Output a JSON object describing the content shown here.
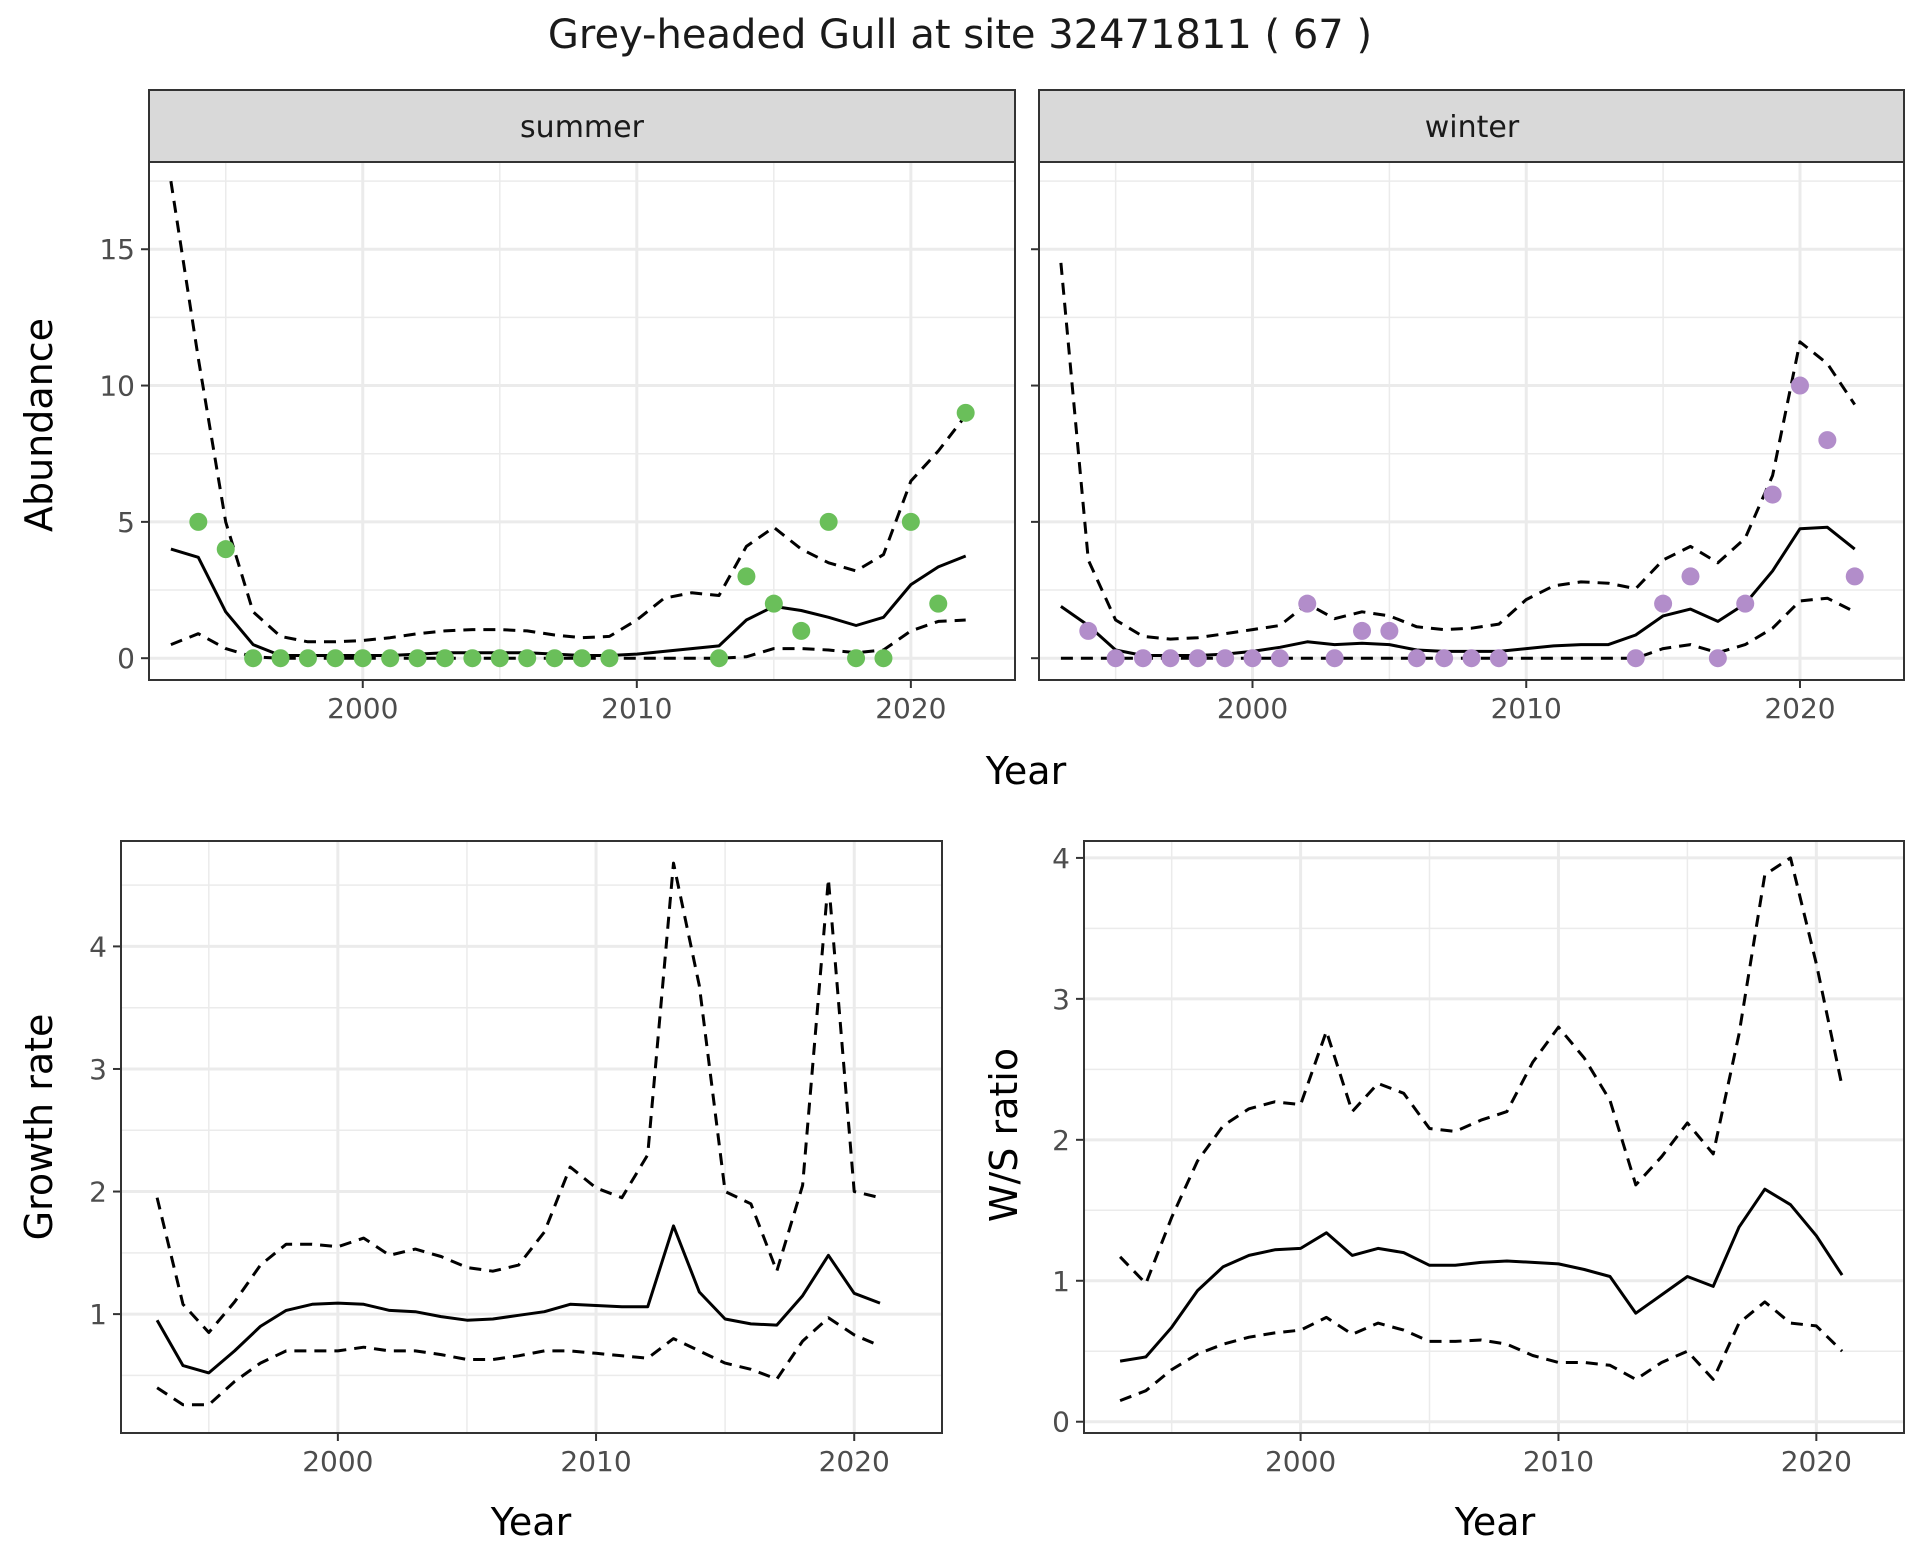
{
  "title": "Grey-headed Gull at site 32471811 ( 67 )",
  "colors": {
    "summer_points": "#6abf5a",
    "winter_points": "#b28dca",
    "strip_fill": "#d9d9d9",
    "grid": "#ebebeb"
  },
  "chart_data": [
    {
      "type": "line",
      "panel": "summer",
      "facet_label": "summer",
      "xlabel": "Year",
      "ylabel": "Abundance",
      "xlim": [
        1992.2,
        2023.8
      ],
      "ylim": [
        -0.8,
        18.2
      ],
      "xticks": [
        2000,
        2010,
        2020
      ],
      "yticks": [
        0,
        5,
        10,
        15
      ],
      "points": {
        "x": [
          1994,
          1995,
          1996,
          1997,
          1998,
          1999,
          2000,
          2001,
          2002,
          2003,
          2004,
          2005,
          2006,
          2007,
          2008,
          2009,
          2013,
          2014,
          2015,
          2016,
          2017,
          2018,
          2019,
          2020,
          2021,
          2022
        ],
        "y": [
          5,
          4,
          0,
          0,
          0,
          0,
          0,
          0,
          0,
          0,
          0,
          0,
          0,
          0,
          0,
          0,
          0,
          3,
          2,
          1,
          5,
          0,
          0,
          5,
          2,
          9
        ]
      },
      "series": [
        {
          "style": "solid",
          "x": [
            1993,
            1994,
            1995,
            1996,
            1997,
            1998,
            1999,
            2000,
            2001,
            2002,
            2003,
            2004,
            2005,
            2006,
            2007,
            2008,
            2009,
            2010,
            2011,
            2012,
            2013,
            2014,
            2015,
            2016,
            2017,
            2018,
            2019,
            2020,
            2021,
            2022
          ],
          "values": [
            4.0,
            3.7,
            1.7,
            0.5,
            0.1,
            0.1,
            0.1,
            0.1,
            0.1,
            0.15,
            0.2,
            0.2,
            0.2,
            0.2,
            0.15,
            0.1,
            0.1,
            0.15,
            0.25,
            0.35,
            0.45,
            1.4,
            1.9,
            1.75,
            1.5,
            1.2,
            1.5,
            2.7,
            3.35,
            3.75
          ]
        },
        {
          "style": "dashed",
          "x": [
            1993,
            1994,
            1995,
            1996,
            1997,
            1998,
            1999,
            2000,
            2001,
            2002,
            2003,
            2004,
            2005,
            2006,
            2007,
            2008,
            2009,
            2010,
            2011,
            2012,
            2013,
            2014,
            2015,
            2016,
            2017,
            2018,
            2019,
            2020,
            2021,
            2022
          ],
          "values": [
            17.5,
            11.0,
            5.0,
            1.7,
            0.8,
            0.6,
            0.6,
            0.65,
            0.75,
            0.9,
            1.0,
            1.05,
            1.05,
            1.0,
            0.85,
            0.75,
            0.8,
            1.4,
            2.2,
            2.4,
            2.3,
            4.1,
            4.8,
            4.0,
            3.5,
            3.2,
            3.8,
            6.5,
            7.6,
            8.9
          ]
        },
        {
          "style": "dashed",
          "x": [
            1993,
            1994,
            1995,
            1996,
            1997,
            1998,
            1999,
            2000,
            2001,
            2002,
            2003,
            2004,
            2005,
            2006,
            2007,
            2008,
            2009,
            2010,
            2011,
            2012,
            2013,
            2014,
            2015,
            2016,
            2017,
            2018,
            2019,
            2020,
            2021,
            2022
          ],
          "values": [
            0.5,
            0.9,
            0.35,
            0.05,
            0,
            0,
            0,
            0,
            0,
            0,
            0,
            0,
            0,
            0,
            0,
            0,
            0,
            0,
            0,
            0,
            0,
            0.05,
            0.35,
            0.35,
            0.3,
            0.2,
            0.3,
            1.0,
            1.35,
            1.4
          ]
        }
      ]
    },
    {
      "type": "line",
      "panel": "winter",
      "facet_label": "winter",
      "xlabel": "Year",
      "ylabel": "",
      "xlim": [
        1992.2,
        2023.8
      ],
      "ylim": [
        -0.8,
        18.2
      ],
      "xticks": [
        2000,
        2010,
        2020
      ],
      "yticks": [
        0,
        5,
        10,
        15
      ],
      "points": {
        "x": [
          1994,
          1995,
          1996,
          1997,
          1998,
          1999,
          2000,
          2001,
          2002,
          2003,
          2004,
          2005,
          2006,
          2007,
          2008,
          2009,
          2014,
          2015,
          2016,
          2017,
          2018,
          2019,
          2020,
          2021,
          2022
        ],
        "y": [
          1,
          0,
          0,
          0,
          0,
          0,
          0,
          0,
          2,
          0,
          1,
          1,
          0,
          0,
          0,
          0,
          0,
          2,
          3,
          0,
          2,
          6,
          10,
          8,
          3
        ]
      },
      "series": [
        {
          "style": "solid",
          "x": [
            1993,
            1994,
            1995,
            1996,
            1997,
            1998,
            1999,
            2000,
            2001,
            2002,
            2003,
            2004,
            2005,
            2006,
            2007,
            2008,
            2009,
            2010,
            2011,
            2012,
            2013,
            2014,
            2015,
            2016,
            2017,
            2018,
            2019,
            2020,
            2021,
            2022
          ],
          "values": [
            1.9,
            1.2,
            0.3,
            0.1,
            0.1,
            0.1,
            0.15,
            0.25,
            0.4,
            0.6,
            0.5,
            0.55,
            0.5,
            0.3,
            0.25,
            0.25,
            0.25,
            0.35,
            0.45,
            0.5,
            0.5,
            0.85,
            1.55,
            1.8,
            1.35,
            2.0,
            3.2,
            4.75,
            4.8,
            4.0
          ]
        },
        {
          "style": "dashed",
          "x": [
            1993,
            1994,
            1995,
            1996,
            1997,
            1998,
            1999,
            2000,
            2001,
            2002,
            2003,
            2004,
            2005,
            2006,
            2007,
            2008,
            2009,
            2010,
            2011,
            2012,
            2013,
            2014,
            2015,
            2016,
            2017,
            2018,
            2019,
            2020,
            2021,
            2022
          ],
          "values": [
            14.5,
            3.6,
            1.4,
            0.8,
            0.7,
            0.75,
            0.9,
            1.05,
            1.2,
            2.0,
            1.45,
            1.7,
            1.55,
            1.15,
            1.05,
            1.1,
            1.25,
            2.15,
            2.65,
            2.8,
            2.75,
            2.55,
            3.6,
            4.1,
            3.5,
            4.4,
            6.7,
            11.6,
            10.8,
            9.3
          ]
        },
        {
          "style": "dashed",
          "x": [
            1993,
            1994,
            1995,
            1996,
            1997,
            1998,
            1999,
            2000,
            2001,
            2002,
            2003,
            2004,
            2005,
            2006,
            2007,
            2008,
            2009,
            2010,
            2011,
            2012,
            2013,
            2014,
            2015,
            2016,
            2017,
            2018,
            2019,
            2020,
            2021,
            2022
          ],
          "values": [
            0,
            0,
            0,
            0,
            0,
            0,
            0,
            0,
            0,
            0,
            0,
            0,
            0,
            0,
            0,
            0,
            0,
            0,
            0,
            0,
            0,
            0,
            0.35,
            0.5,
            0.2,
            0.5,
            1.1,
            2.1,
            2.2,
            1.7
          ]
        }
      ]
    },
    {
      "type": "line",
      "panel": "growth",
      "xlabel": "Year",
      "ylabel": "Growth rate",
      "xlim": [
        1991.6,
        2023.4
      ],
      "ylim": [
        0.03,
        4.86
      ],
      "xticks": [
        2000,
        2010,
        2020
      ],
      "yticks": [
        1,
        2,
        3,
        4
      ],
      "series": [
        {
          "style": "solid",
          "x": [
            1993,
            1994,
            1995,
            1996,
            1997,
            1998,
            1999,
            2000,
            2001,
            2002,
            2003,
            2004,
            2005,
            2006,
            2007,
            2008,
            2009,
            2010,
            2011,
            2012,
            2013,
            2014,
            2015,
            2016,
            2017,
            2018,
            2019,
            2020,
            2021
          ],
          "values": [
            0.95,
            0.58,
            0.52,
            0.7,
            0.9,
            1.03,
            1.08,
            1.09,
            1.08,
            1.03,
            1.02,
            0.98,
            0.95,
            0.96,
            0.99,
            1.02,
            1.08,
            1.07,
            1.06,
            1.06,
            1.72,
            1.18,
            0.96,
            0.92,
            0.91,
            1.15,
            1.48,
            1.17,
            1.09
          ]
        },
        {
          "style": "dashed",
          "x": [
            1993,
            1994,
            1995,
            1996,
            1997,
            1998,
            1999,
            2000,
            2001,
            2002,
            2003,
            2004,
            2005,
            2006,
            2007,
            2008,
            2009,
            2010,
            2011,
            2012,
            2013,
            2014,
            2015,
            2016,
            2017,
            2018,
            2019,
            2020,
            2021
          ],
          "values": [
            1.95,
            1.08,
            0.85,
            1.1,
            1.4,
            1.57,
            1.57,
            1.55,
            1.62,
            1.48,
            1.53,
            1.47,
            1.38,
            1.35,
            1.4,
            1.67,
            2.2,
            2.03,
            1.95,
            2.3,
            4.68,
            3.68,
            2.0,
            1.9,
            1.35,
            2.05,
            4.55,
            2.0,
            1.95
          ]
        },
        {
          "style": "dashed",
          "x": [
            1993,
            1994,
            1995,
            1996,
            1997,
            1998,
            1999,
            2000,
            2001,
            2002,
            2003,
            2004,
            2005,
            2006,
            2007,
            2008,
            2009,
            2010,
            2011,
            2012,
            2013,
            2014,
            2015,
            2016,
            2017,
            2018,
            2019,
            2020,
            2021
          ],
          "values": [
            0.4,
            0.26,
            0.26,
            0.45,
            0.6,
            0.7,
            0.7,
            0.7,
            0.73,
            0.7,
            0.7,
            0.67,
            0.63,
            0.63,
            0.66,
            0.7,
            0.7,
            0.68,
            0.66,
            0.64,
            0.8,
            0.7,
            0.6,
            0.55,
            0.47,
            0.78,
            0.97,
            0.83,
            0.74
          ]
        }
      ]
    },
    {
      "type": "line",
      "panel": "ws",
      "xlabel": "Year",
      "ylabel": "W/S ratio",
      "xlim": [
        1991.6,
        2023.4
      ],
      "ylim": [
        -0.08,
        4.12
      ],
      "xticks": [
        2000,
        2010,
        2020
      ],
      "yticks": [
        0,
        1,
        2,
        3,
        4
      ],
      "series": [
        {
          "style": "solid",
          "x": [
            1993,
            1994,
            1995,
            1996,
            1997,
            1998,
            1999,
            2000,
            2001,
            2002,
            2003,
            2004,
            2005,
            2006,
            2007,
            2008,
            2009,
            2010,
            2011,
            2012,
            2013,
            2014,
            2015,
            2016,
            2017,
            2018,
            2019,
            2020,
            2021
          ],
          "values": [
            0.43,
            0.46,
            0.67,
            0.93,
            1.1,
            1.18,
            1.22,
            1.23,
            1.34,
            1.18,
            1.23,
            1.2,
            1.11,
            1.11,
            1.13,
            1.14,
            1.13,
            1.12,
            1.08,
            1.03,
            0.77,
            0.9,
            1.03,
            0.96,
            1.38,
            1.65,
            1.54,
            1.32,
            1.04
          ]
        },
        {
          "style": "dashed",
          "x": [
            1993,
            1994,
            1995,
            1996,
            1997,
            1998,
            1999,
            2000,
            2001,
            2002,
            2003,
            2004,
            2005,
            2006,
            2007,
            2008,
            2009,
            2010,
            2011,
            2012,
            2013,
            2014,
            2015,
            2016,
            2017,
            2018,
            2019,
            2020,
            2021
          ],
          "values": [
            1.17,
            0.98,
            1.45,
            1.85,
            2.1,
            2.22,
            2.27,
            2.25,
            2.77,
            2.2,
            2.4,
            2.33,
            2.08,
            2.06,
            2.14,
            2.2,
            2.55,
            2.8,
            2.58,
            2.28,
            1.68,
            1.88,
            2.12,
            1.9,
            2.75,
            3.88,
            4.0,
            3.25,
            2.38
          ]
        },
        {
          "style": "dashed",
          "x": [
            1993,
            1994,
            1995,
            1996,
            1997,
            1998,
            1999,
            2000,
            2001,
            2002,
            2003,
            2004,
            2005,
            2006,
            2007,
            2008,
            2009,
            2010,
            2011,
            2012,
            2013,
            2014,
            2015,
            2016,
            2017,
            2018,
            2019,
            2020,
            2021
          ],
          "values": [
            0.15,
            0.22,
            0.37,
            0.48,
            0.55,
            0.6,
            0.63,
            0.65,
            0.74,
            0.62,
            0.7,
            0.65,
            0.57,
            0.57,
            0.58,
            0.55,
            0.47,
            0.42,
            0.42,
            0.4,
            0.3,
            0.42,
            0.5,
            0.3,
            0.7,
            0.85,
            0.7,
            0.68,
            0.5
          ]
        }
      ]
    }
  ]
}
